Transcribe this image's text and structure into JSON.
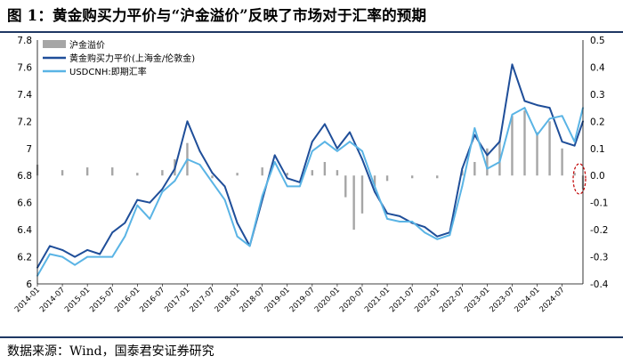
{
  "title": "图 1：黄金购买力平价与“沪金溢价”反映了市场对于汇率的预期",
  "source": "数据来源：Wind，国泰君安证券研究",
  "chart_data": {
    "type": "line",
    "x_ticks": [
      "2014-01",
      "2014-07",
      "2015-01",
      "2015-07",
      "2016-01",
      "2016-07",
      "2017-01",
      "2017-07",
      "2018-01",
      "2018-07",
      "2019-01",
      "2019-07",
      "2020-01",
      "2020-07",
      "2021-01",
      "2021-07",
      "2022-01",
      "2022-07",
      "2023-01",
      "2023-07",
      "2024-01",
      "2024-07"
    ],
    "y_left": {
      "min": 6.0,
      "max": 7.8,
      "ticks": [
        "6",
        "6.2",
        "6.4",
        "6.6",
        "6.8",
        "7",
        "7.2",
        "7.4",
        "7.6",
        "7.8"
      ]
    },
    "y_right": {
      "min": -0.4,
      "max": 0.5,
      "ticks": [
        "-0.4",
        "-0.3",
        "-0.2",
        "-0.1",
        "0.0",
        "0.1",
        "0.2",
        "0.3",
        "0.4",
        "0.5"
      ]
    },
    "x_range": [
      "2014-01",
      "2024-12"
    ],
    "legend_position": "top-left",
    "series": [
      {
        "name": "沪金溢价",
        "kind": "bar",
        "axis": "right",
        "color": "#a6a6a6",
        "x": [
          "2014-01",
          "2014-07",
          "2015-01",
          "2015-07",
          "2016-01",
          "2016-07",
          "2016-10",
          "2017-01",
          "2017-07",
          "2018-01",
          "2018-07",
          "2019-01",
          "2019-07",
          "2019-10",
          "2020-01",
          "2020-03",
          "2020-05",
          "2020-07",
          "2020-10",
          "2021-01",
          "2021-07",
          "2022-01",
          "2022-07",
          "2022-10",
          "2023-01",
          "2023-04",
          "2023-07",
          "2023-10",
          "2024-01",
          "2024-04",
          "2024-07",
          "2024-10",
          "2024-12"
        ],
        "values": [
          0.04,
          0.02,
          0.03,
          0.03,
          0.01,
          0.02,
          0.06,
          0.12,
          -0.01,
          0.01,
          0.03,
          0.01,
          0.02,
          0.05,
          0.02,
          -0.08,
          -0.2,
          -0.14,
          -0.04,
          -0.02,
          -0.01,
          -0.01,
          0.02,
          0.05,
          0.1,
          0.13,
          0.22,
          0.24,
          0.16,
          0.2,
          0.1,
          0.01,
          -0.05
        ]
      },
      {
        "name": "黄金购买力平价(上海金/伦敦金)",
        "kind": "line",
        "axis": "left",
        "color": "#1f4e99",
        "x": [
          "2014-01",
          "2014-04",
          "2014-07",
          "2014-10",
          "2015-01",
          "2015-04",
          "2015-07",
          "2015-10",
          "2016-01",
          "2016-04",
          "2016-07",
          "2016-10",
          "2017-01",
          "2017-04",
          "2017-07",
          "2017-10",
          "2018-01",
          "2018-04",
          "2018-07",
          "2018-10",
          "2019-01",
          "2019-04",
          "2019-07",
          "2019-10",
          "2020-01",
          "2020-04",
          "2020-07",
          "2020-10",
          "2021-01",
          "2021-04",
          "2021-07",
          "2021-10",
          "2022-01",
          "2022-04",
          "2022-07",
          "2022-10",
          "2023-01",
          "2023-04",
          "2023-07",
          "2023-10",
          "2024-01",
          "2024-04",
          "2024-07",
          "2024-10",
          "2024-12"
        ],
        "values": [
          6.12,
          6.28,
          6.25,
          6.2,
          6.25,
          6.22,
          6.38,
          6.45,
          6.62,
          6.6,
          6.7,
          6.85,
          7.2,
          6.98,
          6.82,
          6.72,
          6.45,
          6.28,
          6.62,
          6.95,
          6.78,
          6.75,
          7.05,
          7.18,
          7.0,
          7.12,
          6.92,
          6.68,
          6.52,
          6.5,
          6.45,
          6.42,
          6.35,
          6.38,
          6.85,
          7.1,
          6.95,
          7.05,
          7.62,
          7.35,
          7.32,
          7.3,
          7.05,
          7.02,
          7.2
        ]
      },
      {
        "name": "USDCNH:即期汇率",
        "kind": "line",
        "axis": "left",
        "color": "#5ab4e5",
        "x": [
          "2014-01",
          "2014-04",
          "2014-07",
          "2014-10",
          "2015-01",
          "2015-04",
          "2015-07",
          "2015-10",
          "2016-01",
          "2016-04",
          "2016-07",
          "2016-10",
          "2017-01",
          "2017-04",
          "2017-07",
          "2017-10",
          "2018-01",
          "2018-04",
          "2018-07",
          "2018-10",
          "2019-01",
          "2019-04",
          "2019-07",
          "2019-10",
          "2020-01",
          "2020-04",
          "2020-07",
          "2020-10",
          "2021-01",
          "2021-04",
          "2021-07",
          "2021-10",
          "2022-01",
          "2022-04",
          "2022-07",
          "2022-10",
          "2023-01",
          "2023-04",
          "2023-07",
          "2023-10",
          "2024-01",
          "2024-04",
          "2024-07",
          "2024-10",
          "2024-12"
        ],
        "values": [
          6.06,
          6.22,
          6.2,
          6.14,
          6.2,
          6.2,
          6.2,
          6.35,
          6.58,
          6.48,
          6.68,
          6.76,
          6.92,
          6.88,
          6.75,
          6.62,
          6.35,
          6.28,
          6.65,
          6.9,
          6.72,
          6.72,
          6.98,
          7.05,
          6.98,
          7.05,
          6.98,
          6.72,
          6.48,
          6.46,
          6.46,
          6.38,
          6.33,
          6.36,
          6.72,
          7.15,
          6.85,
          6.9,
          7.25,
          7.3,
          7.1,
          7.22,
          7.24,
          7.05,
          7.3
        ]
      }
    ]
  }
}
